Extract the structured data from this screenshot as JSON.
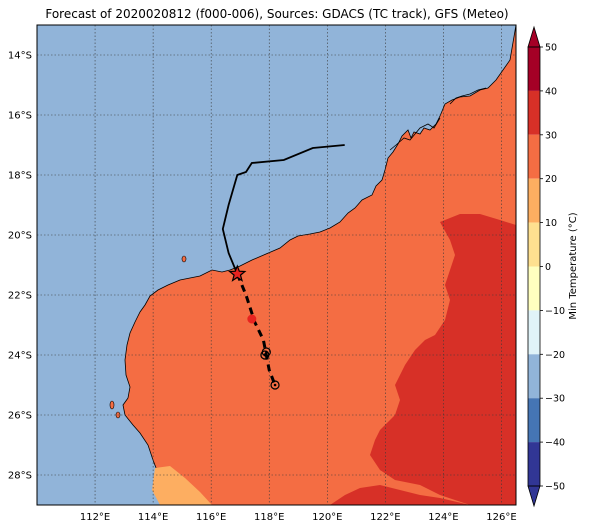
{
  "title": "Forecast of 2020020812 (f000-006), Sources: GDACS (TC track), GFS (Meteo)",
  "map": {
    "lon_range": [
      110,
      126.5
    ],
    "lat_range": [
      -29,
      -13
    ],
    "lat_ticks": [
      {
        "value": -14,
        "label": "14°S"
      },
      {
        "value": -16,
        "label": "16°S"
      },
      {
        "value": -18,
        "label": "18°S"
      },
      {
        "value": -20,
        "label": "20°S"
      },
      {
        "value": -22,
        "label": "22°S"
      },
      {
        "value": -24,
        "label": "24°S"
      },
      {
        "value": -26,
        "label": "26°S"
      },
      {
        "value": -28,
        "label": "28°S"
      }
    ],
    "lon_ticks": [
      {
        "value": 112,
        "label": "112°E"
      },
      {
        "value": 114,
        "label": "114°E"
      },
      {
        "value": 116,
        "label": "116°E"
      },
      {
        "value": 118,
        "label": "118°E"
      },
      {
        "value": 120,
        "label": "120°E"
      },
      {
        "value": 122,
        "label": "122°E"
      },
      {
        "value": 124,
        "label": "124°E"
      },
      {
        "value": 126,
        "label": "126°E"
      }
    ],
    "grid": true,
    "colors": {
      "ocean": "#91b4d9",
      "land_main": "#f46d43",
      "land_warm": "#d73027",
      "land_cool": "#fdae61",
      "coast": "#000000",
      "grid": "#3a3a3a"
    }
  },
  "track": {
    "past": [
      [
        120.6,
        -17.0
      ],
      [
        119.5,
        -17.1
      ],
      [
        118.5,
        -17.5
      ],
      [
        117.4,
        -17.6
      ],
      [
        117.2,
        -17.9
      ],
      [
        116.9,
        -18.0
      ],
      [
        116.6,
        -19.0
      ],
      [
        116.4,
        -19.8
      ],
      [
        116.6,
        -20.6
      ],
      [
        116.9,
        -21.3
      ]
    ],
    "forecast": [
      [
        116.9,
        -21.3
      ],
      [
        117.2,
        -22.0
      ],
      [
        117.5,
        -22.9
      ],
      [
        117.8,
        -23.5
      ],
      [
        117.9,
        -24.0
      ],
      [
        118.0,
        -24.5
      ],
      [
        118.2,
        -25.0
      ]
    ],
    "current": [
      116.9,
      -21.3
    ],
    "forecast_points": [
      {
        "lon": 117.4,
        "lat": -22.8,
        "style": "red-dot"
      },
      {
        "lon": 117.9,
        "lat": -23.9,
        "style": "open-circle"
      },
      {
        "lon": 117.85,
        "lat": -24.0,
        "style": "open-circle"
      },
      {
        "lon": 118.2,
        "lat": -25.0,
        "style": "open-circle"
      }
    ]
  },
  "colorbar": {
    "label": "Min Temperature (°C)",
    "range": [
      -50,
      50
    ],
    "ticks": [
      50,
      40,
      30,
      20,
      10,
      0,
      -10,
      -20,
      -30,
      -40,
      -50
    ],
    "tick_labels": [
      "50",
      "40",
      "30",
      "20",
      "10",
      "0",
      "−10",
      "−20",
      "−30",
      "−40",
      "−50"
    ],
    "levels": [
      {
        "from": 40,
        "to": 50,
        "color": "#a50026"
      },
      {
        "from": 30,
        "to": 40,
        "color": "#d73027"
      },
      {
        "from": 20,
        "to": 30,
        "color": "#f46d43"
      },
      {
        "from": 10,
        "to": 20,
        "color": "#fdae61"
      },
      {
        "from": 0,
        "to": 10,
        "color": "#fee090"
      },
      {
        "from": -10,
        "to": 0,
        "color": "#ffffbf"
      },
      {
        "from": -20,
        "to": -10,
        "color": "#e0f3f8"
      },
      {
        "from": -30,
        "to": -20,
        "color": "#91b4d9"
      },
      {
        "from": -40,
        "to": -30,
        "color": "#4575b4"
      },
      {
        "from": -50,
        "to": -40,
        "color": "#313695"
      }
    ]
  }
}
